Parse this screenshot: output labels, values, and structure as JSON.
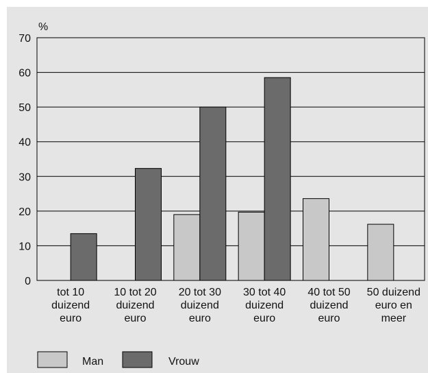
{
  "chart_data": {
    "type": "bar",
    "title": "",
    "xlabel": "",
    "ylabel": "%",
    "ylim": [
      0,
      70
    ],
    "yticks": [
      0,
      10,
      20,
      30,
      40,
      50,
      60,
      70
    ],
    "grid": true,
    "legend_position": "bottom-left",
    "categories": [
      [
        "tot 10",
        "duizend",
        "euro"
      ],
      [
        "10 tot 20",
        "duizend",
        "euro"
      ],
      [
        "20 tot 30",
        "duizend",
        "euro"
      ],
      [
        "30 tot 40",
        "duizend",
        "euro"
      ],
      [
        "40 tot 50",
        "duizend",
        "euro"
      ],
      [
        "50 duizend",
        "euro en",
        "meer"
      ]
    ],
    "series": [
      {
        "name": "Man",
        "color": "#c8c8c8",
        "values": [
          0,
          0,
          19,
          19.7,
          23.6,
          16.2
        ]
      },
      {
        "name": "Vrouw",
        "color": "#6b6b6b",
        "values": [
          13.5,
          32.3,
          50,
          58.5,
          0,
          0
        ]
      }
    ]
  }
}
